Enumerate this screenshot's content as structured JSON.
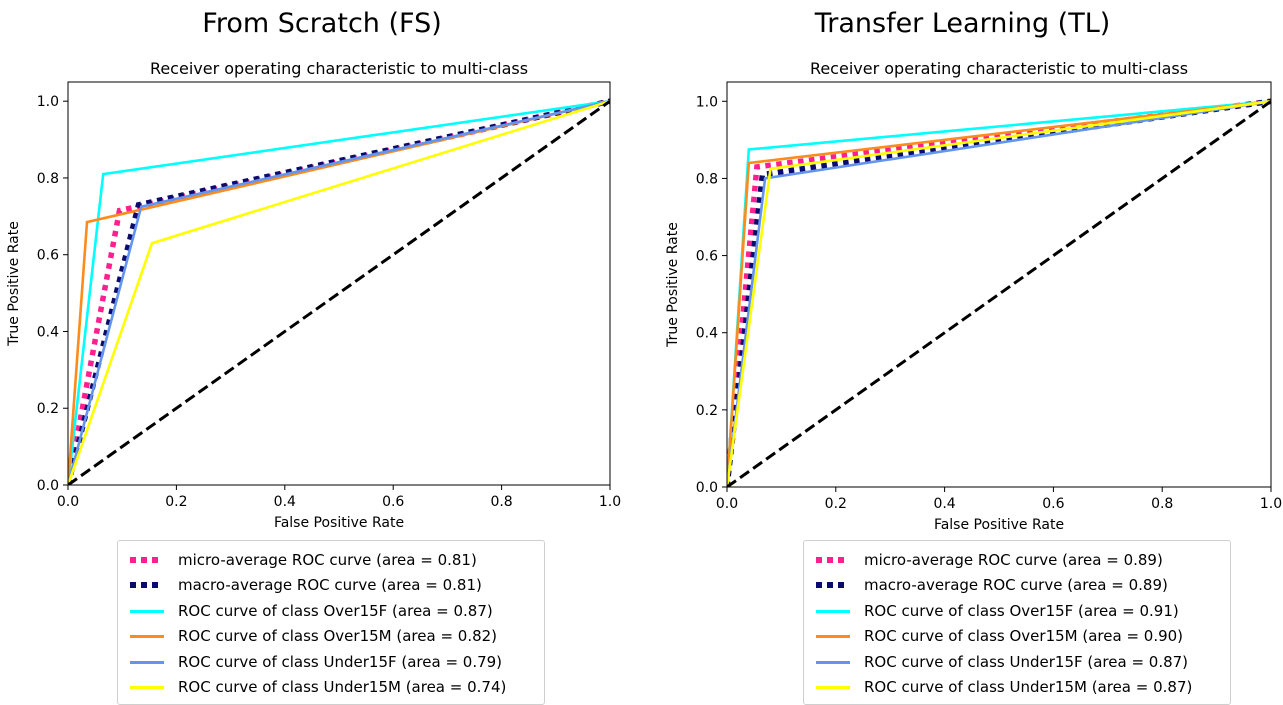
{
  "chart_data": [
    {
      "type": "line",
      "title": "From Scratch (FS)",
      "subtitle": "Receiver operating characteristic to multi-class",
      "xlabel": "False Positive Rate",
      "ylabel": "True Positive Rate",
      "xlim": [
        0,
        1
      ],
      "ylim": [
        0,
        1.05
      ],
      "x_ticks": [
        "0.0",
        "0.2",
        "0.4",
        "0.6",
        "0.8",
        "1.0"
      ],
      "y_ticks": [
        "0.0",
        "0.2",
        "0.4",
        "0.6",
        "0.8",
        "1.0"
      ],
      "grid": false,
      "legend_position": "below",
      "series": [
        {
          "name": "micro-average ROC curve (area = 0.81)",
          "color": "#ff1f8f",
          "style": "dotted",
          "x": [
            0,
            0.095,
            1
          ],
          "y": [
            0,
            0.715,
            1
          ]
        },
        {
          "name": "macro-average ROC curve (area = 0.81)",
          "color": "#0b0b6e",
          "style": "dotted",
          "x": [
            0,
            0.13,
            1
          ],
          "y": [
            0,
            0.73,
            1
          ]
        },
        {
          "name": "ROC curve of class Over15F (area = 0.87)",
          "color": "#00ffff",
          "style": "solid",
          "x": [
            0,
            0.065,
            1
          ],
          "y": [
            0,
            0.81,
            1
          ]
        },
        {
          "name": "ROC curve of class Over15M (area = 0.82)",
          "color": "#ff8c1a",
          "style": "solid",
          "x": [
            0,
            0.035,
            1
          ],
          "y": [
            0,
            0.685,
            1
          ]
        },
        {
          "name": "ROC curve of class Under15F (area = 0.79)",
          "color": "#6495ed",
          "style": "solid",
          "x": [
            0,
            0.135,
            1
          ],
          "y": [
            0,
            0.725,
            1
          ]
        },
        {
          "name": "ROC curve of class Under15M (area = 0.74)",
          "color": "#ffff00",
          "style": "solid",
          "x": [
            0,
            0.155,
            1
          ],
          "y": [
            0,
            0.63,
            1
          ]
        },
        {
          "name": "",
          "color": "#000000",
          "style": "dashed",
          "x": [
            0,
            1
          ],
          "y": [
            0,
            1
          ]
        }
      ]
    },
    {
      "type": "line",
      "title": "Transfer Learning (TL)",
      "subtitle": "Receiver operating characteristic to multi-class",
      "xlabel": "False Positive Rate",
      "ylabel": "True Positive Rate",
      "xlim": [
        0,
        1
      ],
      "ylim": [
        0,
        1.05
      ],
      "x_ticks": [
        "0.0",
        "0.2",
        "0.4",
        "0.6",
        "0.8",
        "1.0"
      ],
      "y_ticks": [
        "0.0",
        "0.2",
        "0.4",
        "0.6",
        "0.8",
        "1.0"
      ],
      "grid": false,
      "legend_position": "below",
      "series": [
        {
          "name": "micro-average ROC curve (area = 0.89)",
          "color": "#ff1f8f",
          "style": "dotted",
          "x": [
            0,
            0.055,
            1
          ],
          "y": [
            0,
            0.83,
            1
          ]
        },
        {
          "name": "macro-average ROC curve (area = 0.89)",
          "color": "#0b0b6e",
          "style": "dotted",
          "x": [
            0,
            0.065,
            1
          ],
          "y": [
            0,
            0.81,
            1
          ]
        },
        {
          "name": "ROC curve of class Over15F (area = 0.91)",
          "color": "#00ffff",
          "style": "solid",
          "x": [
            0,
            0.04,
            1
          ],
          "y": [
            0,
            0.875,
            1
          ]
        },
        {
          "name": "ROC curve of class Over15M (area = 0.90)",
          "color": "#ff8c1a",
          "style": "solid",
          "x": [
            0,
            0.04,
            1
          ],
          "y": [
            0,
            0.84,
            1
          ]
        },
        {
          "name": "ROC curve of class Under15F (area = 0.87)",
          "color": "#6495ed",
          "style": "solid",
          "x": [
            0,
            0.07,
            1
          ],
          "y": [
            0,
            0.8,
            1
          ]
        },
        {
          "name": "ROC curve of class Under15M (area = 0.87)",
          "color": "#ffff00",
          "style": "solid",
          "x": [
            0,
            0.08,
            1
          ],
          "y": [
            0,
            0.825,
            1
          ]
        },
        {
          "name": "",
          "color": "#000000",
          "style": "dashed",
          "x": [
            0,
            1
          ],
          "y": [
            0,
            1
          ]
        }
      ]
    }
  ]
}
